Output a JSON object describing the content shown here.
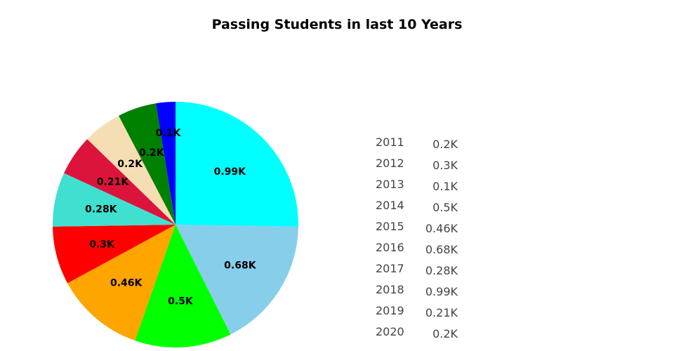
{
  "chart_data": {
    "type": "pie",
    "title": "Passing Students in last 10 Years",
    "unit_suffix": "K",
    "slices": [
      {
        "label": "2018",
        "value": 0.99,
        "text": "0.99K",
        "color": "#00ffff"
      },
      {
        "label": "2016",
        "value": 0.68,
        "text": "0.68K",
        "color": "#87ceeb"
      },
      {
        "label": "2014",
        "value": 0.5,
        "text": "0.5K",
        "color": "#00ff00"
      },
      {
        "label": "2015",
        "value": 0.46,
        "text": "0.46K",
        "color": "#ffa500"
      },
      {
        "label": "2012",
        "value": 0.3,
        "text": "0.3K",
        "color": "#ff0000"
      },
      {
        "label": "2017",
        "value": 0.28,
        "text": "0.28K",
        "color": "#40e0d0"
      },
      {
        "label": "2019",
        "value": 0.21,
        "text": "0.21K",
        "color": "#dc143c"
      },
      {
        "label": "2011",
        "value": 0.2,
        "text": "0.2K",
        "color": "#f5deb3"
      },
      {
        "label": "2020",
        "value": 0.2,
        "text": "0.2K",
        "color": "#008000"
      },
      {
        "label": "2013",
        "value": 0.1,
        "text": "0.1K",
        "color": "#0000ff"
      }
    ],
    "table": [
      {
        "year": "2011",
        "value": "0.2K"
      },
      {
        "year": "2012",
        "value": "0.3K"
      },
      {
        "year": "2013",
        "value": "0.1K"
      },
      {
        "year": "2014",
        "value": "0.5K"
      },
      {
        "year": "2015",
        "value": "0.46K"
      },
      {
        "year": "2016",
        "value": "0.68K"
      },
      {
        "year": "2017",
        "value": "0.28K"
      },
      {
        "year": "2018",
        "value": "0.99K"
      },
      {
        "year": "2019",
        "value": "0.21K"
      },
      {
        "year": "2020",
        "value": "0.2K"
      }
    ]
  }
}
